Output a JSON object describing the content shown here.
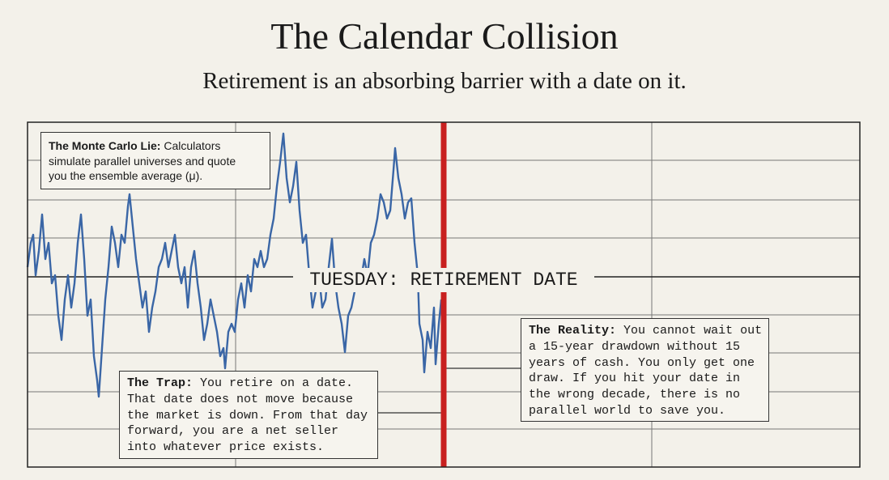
{
  "header": {
    "title": "The Calendar Collision",
    "subtitle": "Retirement is an absorbing barrier with a date on it."
  },
  "center_label": "TUESDAY: RETIREMENT DATE",
  "callouts": [
    {
      "label": "The Monte Carlo Lie:",
      "lines": [
        "Calculators",
        "simulate parallel universes and quote",
        "you the ensemble average (μ)."
      ]
    },
    {
      "label": "The Trap:",
      "lines": [
        "You retire on a date.",
        "That date does not move because",
        "the market is down. From that day",
        "forward, you are a net seller",
        "into whatever price exists."
      ]
    },
    {
      "label": "The Reality:",
      "lines": [
        "You cannot wait out",
        "a 15-year drawdown without 15",
        "years of cash. You only get one",
        "draw. If you hit your date in",
        "the wrong decade, there is no",
        "parallel world to save you."
      ]
    }
  ]
}
